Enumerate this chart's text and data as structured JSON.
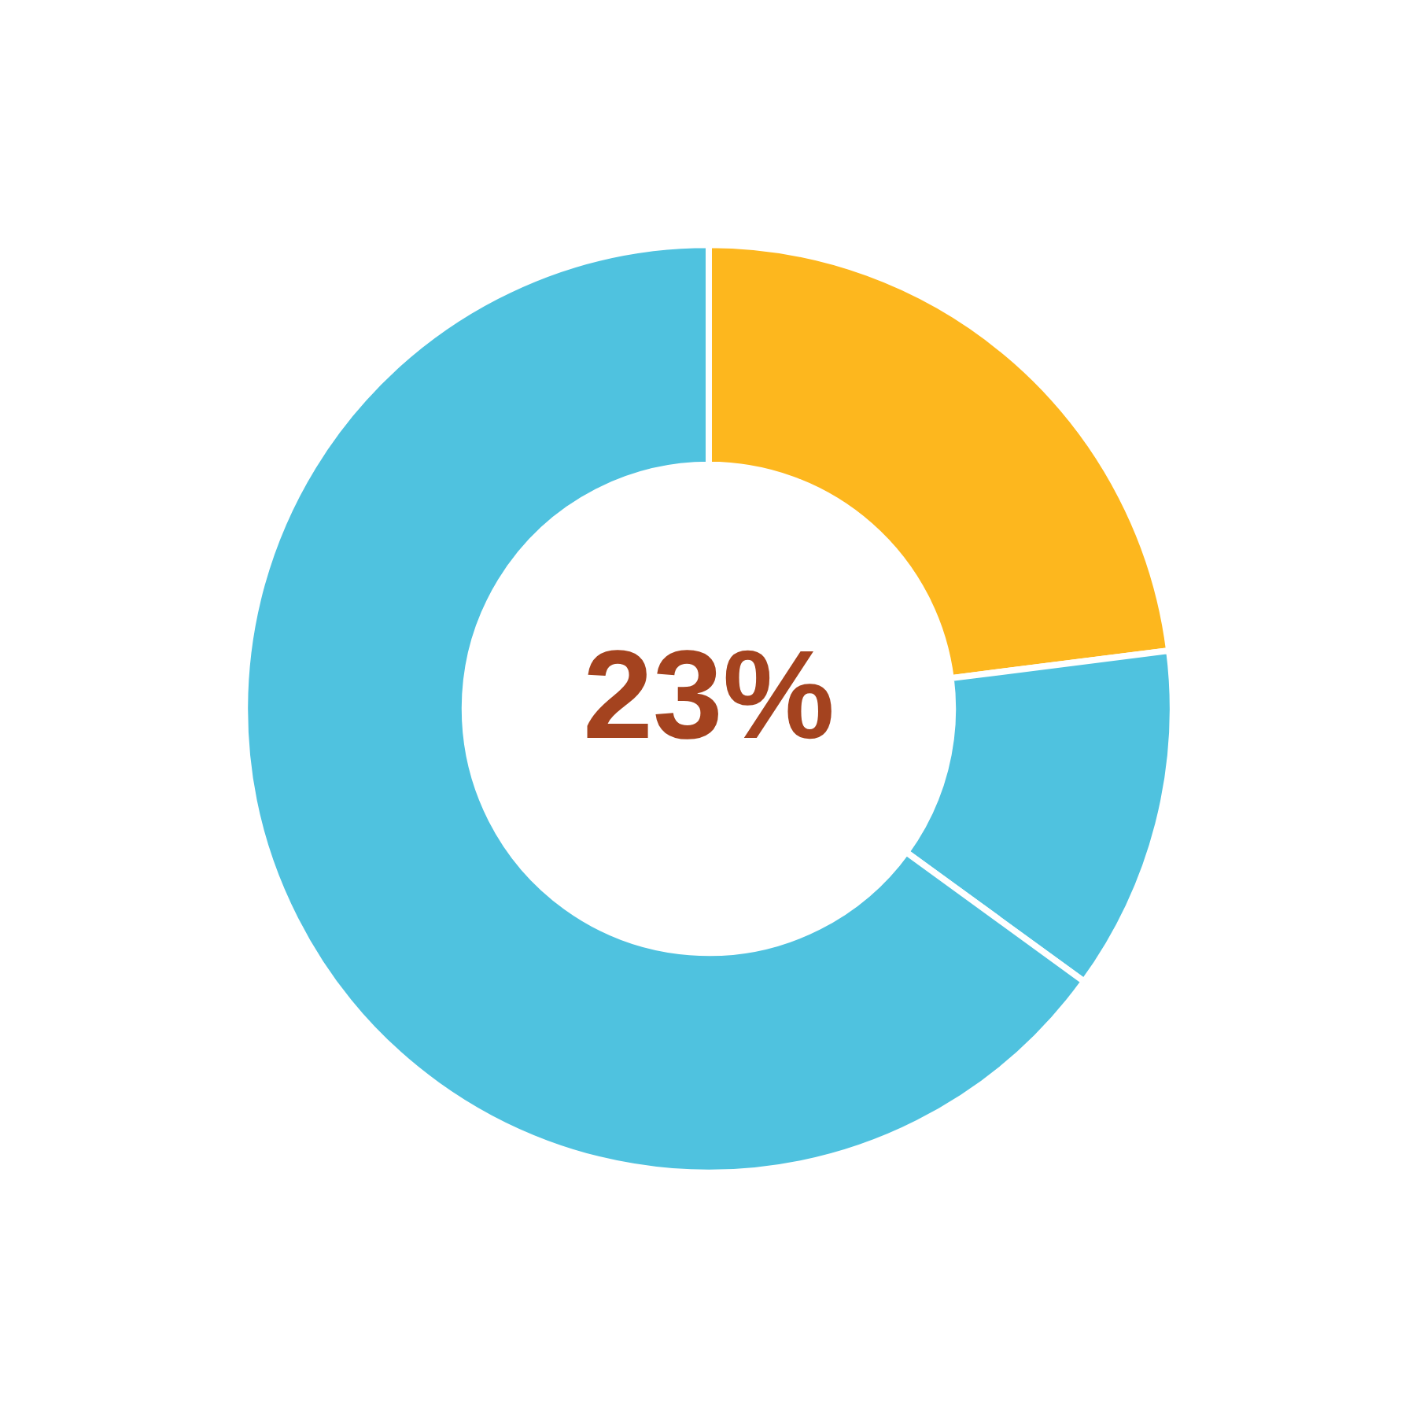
{
  "chart_data": {
    "type": "donut",
    "categories": [
      null,
      null,
      null
    ],
    "values": [
      23,
      12,
      65
    ],
    "colors": [
      "#fdb71e",
      "#4fc2df",
      "#4fc2df"
    ],
    "annotations": [
      "23%"
    ]
  }
}
